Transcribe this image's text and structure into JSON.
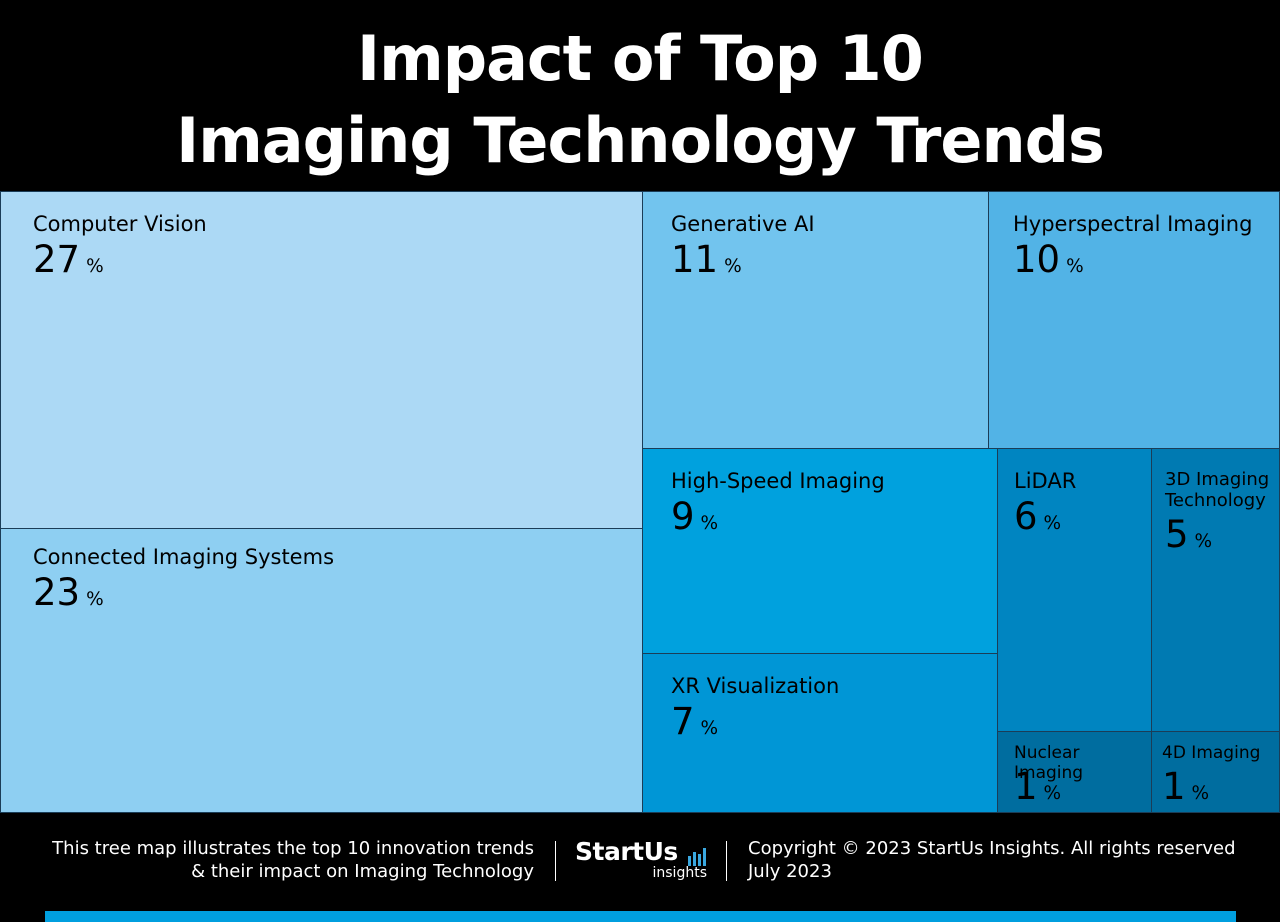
{
  "title": {
    "line1": "Impact of Top 10",
    "line2": "Imaging Technology Trends"
  },
  "chart_data": {
    "type": "treemap",
    "title": "Impact of Top 10 Imaging Technology Trends",
    "unit": "%",
    "items": [
      {
        "name": "Computer Vision",
        "value": 27,
        "color": "#acd9f5"
      },
      {
        "name": "Connected Imaging Systems",
        "value": 23,
        "color": "#8ecff2"
      },
      {
        "name": "Generative AI",
        "value": 11,
        "color": "#72c4ee"
      },
      {
        "name": "Hyperspectral Imaging",
        "value": 10,
        "color": "#52b3e6"
      },
      {
        "name": "High-Speed Imaging",
        "value": 9,
        "color": "#00a1de"
      },
      {
        "name": "XR Visualization",
        "value": 7,
        "color": "#0096d6"
      },
      {
        "name": "LiDAR",
        "value": 6,
        "color": "#0085c1"
      },
      {
        "name": "3D Imaging Technology",
        "label": "3D Imaging\nTechnology",
        "value": 5,
        "color": "#007ab2"
      },
      {
        "name": "Nuclear Imaging",
        "value": 1,
        "color": "#006d9f"
      },
      {
        "name": "4D Imaging",
        "value": 1,
        "color": "#006d9f"
      }
    ]
  },
  "footer": {
    "description_line1": "This tree map illustrates the top 10 innovation trends",
    "description_line2": "& their impact on Imaging Technology",
    "logo_main": "StartUs",
    "logo_sub": "insights",
    "copyright": "Copyright © 2023 StartUs Insights. All rights reserved",
    "date": "July 2023"
  }
}
